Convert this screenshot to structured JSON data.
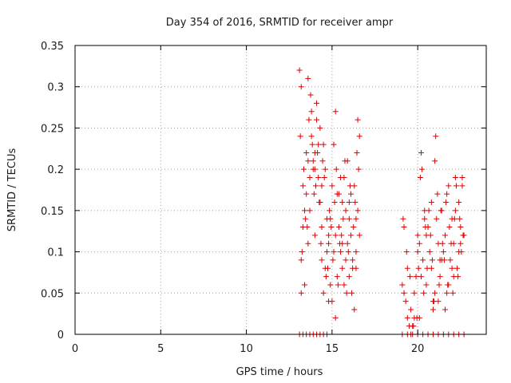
{
  "chart_data": {
    "type": "scatter",
    "title": "Day 354 of 2016, SRMTID for receiver ampr",
    "xlabel": "GPS time / hours",
    "ylabel": "SRMTID / TECUs",
    "xlim": [
      0,
      24
    ],
    "ylim": [
      0,
      0.35
    ],
    "xticks": [
      0,
      5,
      10,
      15,
      20
    ],
    "xtick_labels": [
      "0",
      "5",
      "10",
      "15",
      "20"
    ],
    "yticks": [
      0,
      0.05,
      0.1,
      0.15,
      0.2,
      0.25,
      0.3,
      0.35
    ],
    "ytick_labels": [
      "0",
      "0.05",
      "0.1",
      "0.15",
      "0.2",
      "0.25",
      "0.3",
      "0.35"
    ],
    "grid": true,
    "marker": "plus",
    "color": "#e00000",
    "series": [
      {
        "name": "SRMTID",
        "x": [
          13.1,
          13.2,
          13.3,
          13.4,
          13.5,
          13.6,
          13.7,
          13.8,
          13.9,
          14.0,
          14.1,
          14.2,
          14.3,
          14.4,
          14.5,
          14.6,
          14.7,
          14.8,
          14.9,
          15.0,
          15.1,
          15.2,
          15.3,
          15.4,
          15.5,
          15.6,
          15.7,
          15.8,
          15.9,
          16.0,
          16.1,
          16.2,
          16.3,
          16.4,
          16.5,
          16.6,
          13.15,
          13.35,
          13.55,
          13.75,
          13.95,
          14.15,
          14.35,
          14.55,
          14.75,
          14.95,
          15.15,
          15.35,
          15.55,
          15.75,
          15.95,
          16.15,
          16.35,
          16.55,
          13.25,
          13.45,
          13.65,
          13.85,
          14.05,
          14.25,
          14.45,
          14.65,
          14.85,
          15.05,
          15.25,
          15.45,
          15.65,
          15.85,
          16.05,
          16.25,
          16.45,
          13.2,
          13.5,
          13.8,
          14.1,
          14.4,
          14.7,
          15.0,
          15.3,
          15.6,
          15.9,
          16.2,
          16.5,
          13.3,
          13.6,
          13.9,
          14.2,
          14.5,
          14.8,
          15.1,
          15.4,
          15.7,
          16.0,
          16.3,
          16.6,
          13.4,
          13.7,
          14.0,
          14.3,
          14.6,
          14.9,
          15.2,
          15.5,
          15.8,
          16.1,
          16.4,
          13.2,
          13.6,
          14.0,
          14.4,
          14.8,
          15.2,
          15.6,
          16.0,
          16.4,
          19.1,
          19.2,
          19.3,
          19.4,
          19.5,
          19.6,
          19.7,
          19.8,
          19.9,
          20.0,
          20.1,
          20.2,
          20.3,
          20.4,
          20.5,
          20.6,
          20.7,
          20.8,
          20.9,
          21.0,
          21.1,
          21.2,
          21.3,
          21.4,
          21.5,
          21.6,
          21.7,
          21.8,
          21.9,
          22.0,
          22.1,
          22.2,
          22.3,
          22.4,
          22.5,
          22.6,
          22.7,
          19.15,
          19.35,
          19.55,
          19.75,
          19.95,
          20.15,
          20.35,
          20.55,
          20.75,
          20.95,
          21.15,
          21.35,
          21.55,
          21.75,
          21.95,
          22.15,
          22.35,
          22.55,
          20.05,
          20.25,
          20.45,
          20.65,
          20.85,
          21.05,
          21.25,
          21.45,
          21.65,
          21.85,
          22.05,
          22.25,
          22.45,
          22.65,
          19.2,
          19.4,
          19.6,
          19.8,
          20.0,
          20.2,
          20.4,
          20.6,
          20.8,
          21.0,
          21.2,
          21.4,
          21.6,
          21.8,
          22.0,
          22.2,
          22.4,
          22.6,
          20.1,
          20.5,
          20.9,
          21.3,
          21.7,
          22.1,
          22.5,
          13.1,
          13.3,
          13.5,
          13.7,
          13.9,
          14.1,
          14.3,
          14.5,
          14.7,
          19.1,
          19.4,
          19.7,
          20.0,
          20.3,
          20.6,
          20.9,
          21.2,
          21.5,
          21.8,
          22.1,
          22.4,
          22.7
        ],
        "y": [
          0.32,
          0.3,
          0.18,
          0.15,
          0.22,
          0.31,
          0.19,
          0.27,
          0.21,
          0.12,
          0.26,
          0.23,
          0.16,
          0.09,
          0.05,
          0.2,
          0.14,
          0.11,
          0.06,
          0.04,
          0.23,
          0.27,
          0.17,
          0.13,
          0.1,
          0.08,
          0.19,
          0.15,
          0.21,
          0.07,
          0.12,
          0.09,
          0.18,
          0.14,
          0.26,
          0.24,
          0.24,
          0.2,
          0.13,
          0.29,
          0.17,
          0.22,
          0.11,
          0.19,
          0.08,
          0.13,
          0.16,
          0.06,
          0.12,
          0.21,
          0.1,
          0.05,
          0.16,
          0.2,
          0.1,
          0.14,
          0.26,
          0.23,
          0.18,
          0.16,
          0.21,
          0.07,
          0.15,
          0.09,
          0.2,
          0.11,
          0.14,
          0.05,
          0.18,
          0.13,
          0.22,
          0.09,
          0.17,
          0.24,
          0.28,
          0.13,
          0.1,
          0.18,
          0.07,
          0.16,
          0.11,
          0.08,
          0.15,
          0.13,
          0.21,
          0.2,
          0.19,
          0.23,
          0.12,
          0.1,
          0.17,
          0.06,
          0.14,
          0.03,
          0.12,
          0.06,
          0.15,
          0.22,
          0.25,
          0.08,
          0.14,
          0.12,
          0.19,
          0.09,
          0.17,
          0.1,
          0.05,
          0.11,
          0.2,
          0.18,
          0.04,
          0.02,
          0.11,
          0.16,
          0.08,
          0.06,
          0.05,
          0.04,
          0.02,
          0.01,
          0.0,
          0.01,
          0.02,
          0.07,
          0.12,
          0.11,
          0.22,
          0.09,
          0.14,
          0.06,
          0.13,
          0.1,
          0.08,
          0.03,
          0.05,
          0.14,
          0.11,
          0.07,
          0.15,
          0.1,
          0.12,
          0.17,
          0.06,
          0.09,
          0.14,
          0.11,
          0.19,
          0.08,
          0.16,
          0.13,
          0.18,
          0.12,
          0.14,
          0.1,
          0.07,
          0.01,
          0.02,
          0.19,
          0.05,
          0.08,
          0.12,
          0.04,
          0.17,
          0.15,
          0.09,
          0.06,
          0.11,
          0.14,
          0.07,
          0.1,
          0.08,
          0.2,
          0.13,
          0.15,
          0.09,
          0.24,
          0.06,
          0.11,
          0.16,
          0.13,
          0.05,
          0.18,
          0.14,
          0.12,
          0.13,
          0.08,
          0.03,
          0.05,
          0.1,
          0.07,
          0.15,
          0.13,
          0.16,
          0.21,
          0.04,
          0.09,
          0.03,
          0.18,
          0.08,
          0.15,
          0.1,
          0.19,
          0.02,
          0.12,
          0.04,
          0.09,
          0.05,
          0.07,
          0.11,
          0,
          0,
          0,
          0,
          0,
          0,
          0,
          0,
          0,
          0,
          0,
          0,
          0,
          0,
          0,
          0,
          0,
          0,
          0,
          0,
          0,
          0
        ]
      }
    ]
  }
}
